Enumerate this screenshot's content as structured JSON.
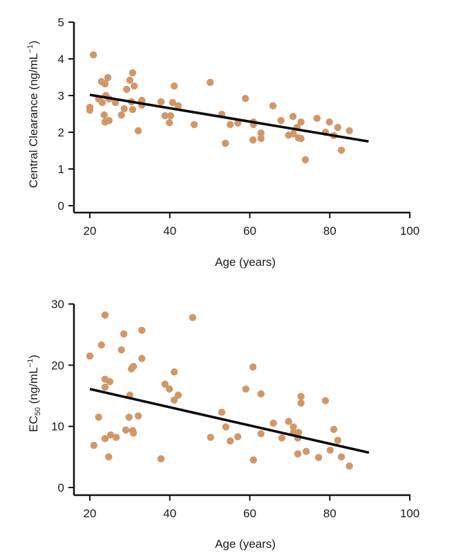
{
  "chart_data": [
    {
      "type": "scatter",
      "title": "",
      "xlabel": "Age (years)",
      "ylabel": "Central Clearance (ng/mL",
      "ylabel_sup": "−1",
      "ylabel_close": ")",
      "xlim": [
        20,
        100
      ],
      "ylim": [
        0,
        5
      ],
      "xticks": [
        20,
        40,
        60,
        80,
        100
      ],
      "yticks": [
        0,
        1,
        2,
        3,
        4,
        5
      ],
      "grid": false,
      "point_color": "#d09868",
      "line_color": "#0a0a0a",
      "trend_line": {
        "x": [
          20,
          89.7
        ],
        "y": [
          3.02,
          1.75
        ]
      },
      "points": [
        [
          20.9,
          4.11
        ],
        [
          20.0,
          2.68
        ],
        [
          20.0,
          2.6
        ],
        [
          22.9,
          3.38
        ],
        [
          23.8,
          3.32
        ],
        [
          24.5,
          3.49
        ],
        [
          22.2,
          2.91
        ],
        [
          23.1,
          2.81
        ],
        [
          24.0,
          3.0
        ],
        [
          24.8,
          2.91
        ],
        [
          26.4,
          2.81
        ],
        [
          23.6,
          2.47
        ],
        [
          23.8,
          2.28
        ],
        [
          24.8,
          2.32
        ],
        [
          30.7,
          3.62
        ],
        [
          30.0,
          3.42
        ],
        [
          31.1,
          3.26
        ],
        [
          29.2,
          3.17
        ],
        [
          30.4,
          2.83
        ],
        [
          33.0,
          2.87
        ],
        [
          33.0,
          2.74
        ],
        [
          28.6,
          2.64
        ],
        [
          27.9,
          2.47
        ],
        [
          30.7,
          2.62
        ],
        [
          32.1,
          2.04
        ],
        [
          37.8,
          2.83
        ],
        [
          41.1,
          3.26
        ],
        [
          40.7,
          2.81
        ],
        [
          42.1,
          2.72
        ],
        [
          38.8,
          2.45
        ],
        [
          40.2,
          2.45
        ],
        [
          39.9,
          2.26
        ],
        [
          46.1,
          2.21
        ],
        [
          50.1,
          3.36
        ],
        [
          53.0,
          2.49
        ],
        [
          55.1,
          2.21
        ],
        [
          53.9,
          1.7
        ],
        [
          57.0,
          2.25
        ],
        [
          58.9,
          2.92
        ],
        [
          60.9,
          2.28
        ],
        [
          60.9,
          2.21
        ],
        [
          62.8,
          1.98
        ],
        [
          62.8,
          1.83
        ],
        [
          60.8,
          1.79
        ],
        [
          65.8,
          2.72
        ],
        [
          67.8,
          2.32
        ],
        [
          70.8,
          2.43
        ],
        [
          72.8,
          2.28
        ],
        [
          71.8,
          2.13
        ],
        [
          69.7,
          1.92
        ],
        [
          70.9,
          1.96
        ],
        [
          72.2,
          1.85
        ],
        [
          72.8,
          1.83
        ],
        [
          73.9,
          1.25
        ],
        [
          76.8,
          2.38
        ],
        [
          79.9,
          2.28
        ],
        [
          82.0,
          2.13
        ],
        [
          84.9,
          2.04
        ],
        [
          78.9,
          2.0
        ],
        [
          81.0,
          1.91
        ],
        [
          82.9,
          1.51
        ]
      ]
    },
    {
      "type": "scatter",
      "title": "",
      "xlabel": "Age (years)",
      "ylabel": "EC",
      "ylabel_sub": "50",
      "ylabel_rest": " (ng/mL",
      "ylabel_sup": "−1",
      "ylabel_close": ")",
      "xlim": [
        20,
        100
      ],
      "ylim": [
        0,
        30
      ],
      "xticks": [
        20,
        40,
        60,
        80,
        100
      ],
      "yticks": [
        0,
        10,
        20,
        30
      ],
      "grid": false,
      "point_color": "#d09868",
      "line_color": "#0a0a0a",
      "trend_line": {
        "x": [
          20,
          89.8
        ],
        "y": [
          16.1,
          5.7
        ]
      },
      "points": [
        [
          20.0,
          21.5
        ],
        [
          23.8,
          28.2
        ],
        [
          22.9,
          23.3
        ],
        [
          28.5,
          25.1
        ],
        [
          33.0,
          25.7
        ],
        [
          27.9,
          22.5
        ],
        [
          33.0,
          21.1
        ],
        [
          30.9,
          19.8
        ],
        [
          30.4,
          19.4
        ],
        [
          45.7,
          27.8
        ],
        [
          41.1,
          18.9
        ],
        [
          23.8,
          17.7
        ],
        [
          25.0,
          17.3
        ],
        [
          23.8,
          16.4
        ],
        [
          30.0,
          15.1
        ],
        [
          38.8,
          16.9
        ],
        [
          39.9,
          16.1
        ],
        [
          42.1,
          15.1
        ],
        [
          41.1,
          14.3
        ],
        [
          53.0,
          12.3
        ],
        [
          22.2,
          11.5
        ],
        [
          29.8,
          11.5
        ],
        [
          32.1,
          11.7
        ],
        [
          21.0,
          6.9
        ],
        [
          23.8,
          8.0
        ],
        [
          25.2,
          8.6
        ],
        [
          26.6,
          8.2
        ],
        [
          24.7,
          5.0
        ],
        [
          29.0,
          9.4
        ],
        [
          30.7,
          9.3
        ],
        [
          30.9,
          8.9
        ],
        [
          37.8,
          4.7
        ],
        [
          50.2,
          8.2
        ],
        [
          54.0,
          9.9
        ],
        [
          55.1,
          7.6
        ],
        [
          57.0,
          8.3
        ],
        [
          60.8,
          19.7
        ],
        [
          59.0,
          16.1
        ],
        [
          62.8,
          15.3
        ],
        [
          72.8,
          14.9
        ],
        [
          72.8,
          13.8
        ],
        [
          78.9,
          14.2
        ],
        [
          62.8,
          8.8
        ],
        [
          65.9,
          10.5
        ],
        [
          68.0,
          8.1
        ],
        [
          69.7,
          10.8
        ],
        [
          70.9,
          9.9
        ],
        [
          70.9,
          9.0
        ],
        [
          72.2,
          9.0
        ],
        [
          72.0,
          8.1
        ],
        [
          72.0,
          5.5
        ],
        [
          74.1,
          5.9
        ],
        [
          77.2,
          4.9
        ],
        [
          80.1,
          6.1
        ],
        [
          81.0,
          9.5
        ],
        [
          82.0,
          7.7
        ],
        [
          82.9,
          5.0
        ],
        [
          84.9,
          3.5
        ],
        [
          60.9,
          4.5
        ]
      ]
    }
  ]
}
